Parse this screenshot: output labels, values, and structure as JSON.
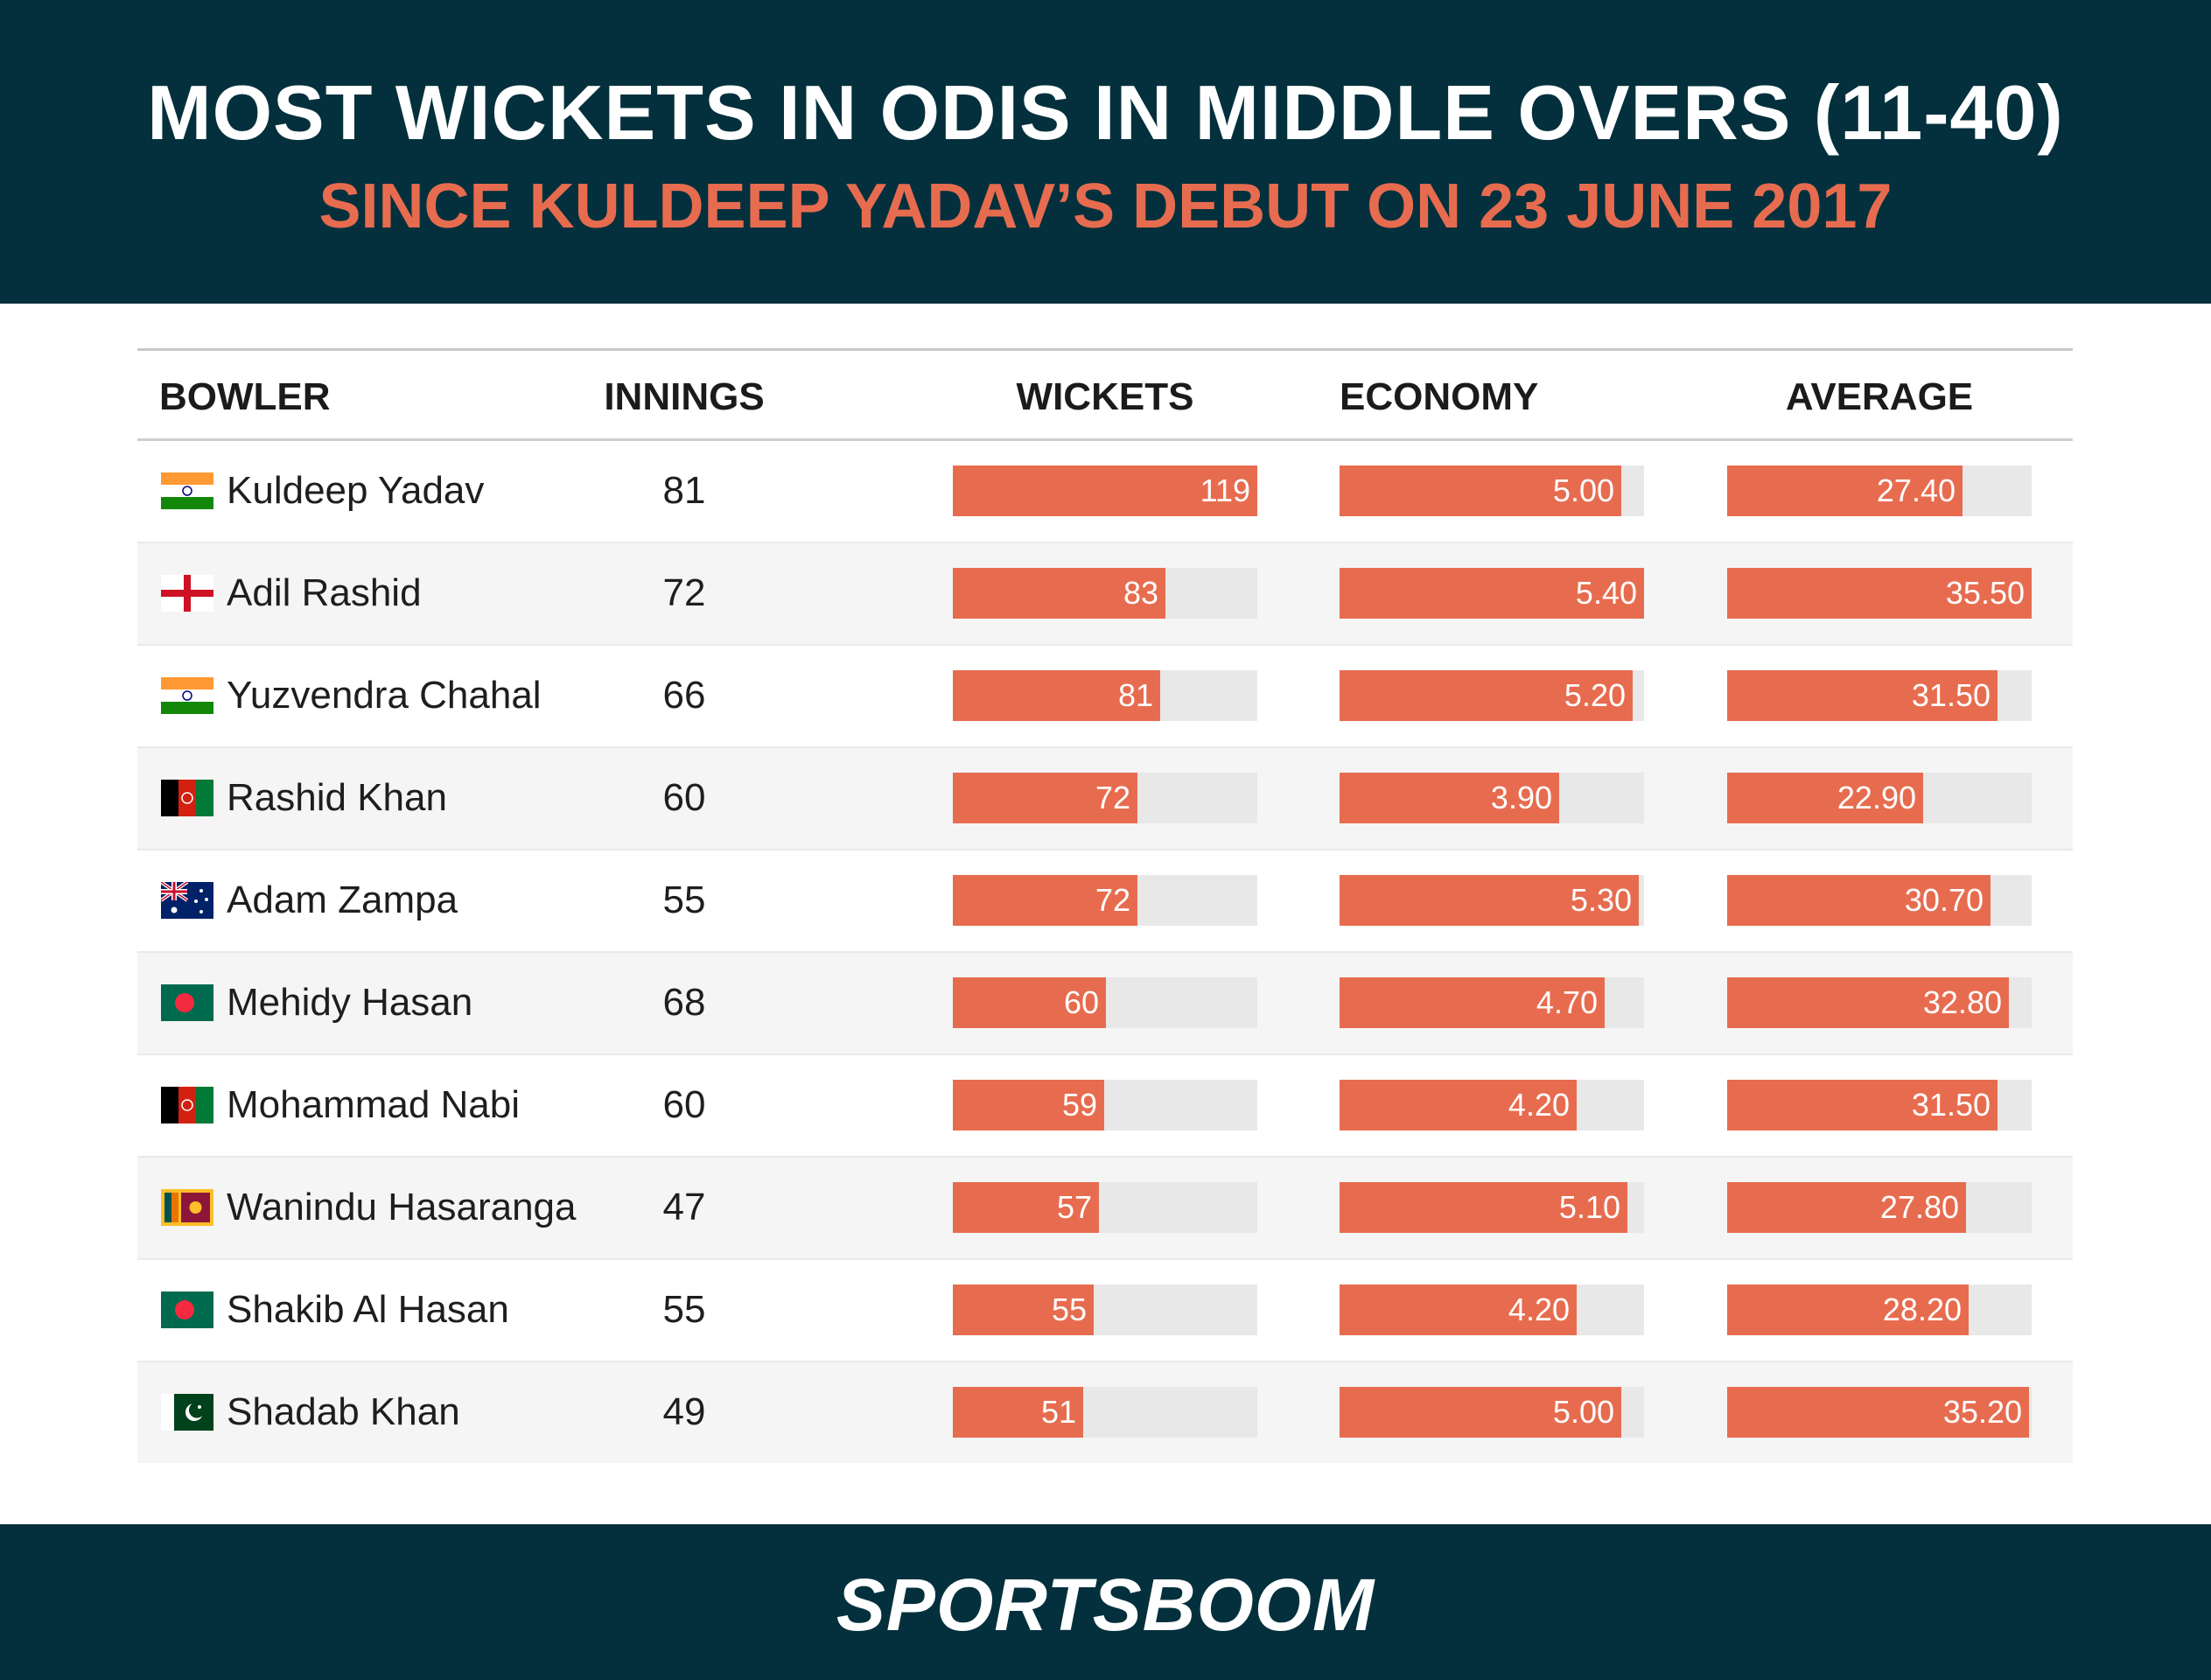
{
  "header": {
    "title": "MOST WICKETS IN ODIS IN MIDDLE OVERS (11-40)",
    "subtitle": "SINCE KULDEEP YADAV’S DEBUT ON 23 JUNE 2017"
  },
  "colors": {
    "header_bg": "#04303d",
    "accent": "#e76c4f",
    "bar_track": "#e8e8e8",
    "row_alt": "#f5f5f5"
  },
  "chart_data": {
    "type": "table",
    "columns": [
      "BOWLER",
      "INNINGS",
      "WICKETS",
      "ECONOMY",
      "AVERAGE"
    ],
    "bar_columns": {
      "wickets_max": 119,
      "economy_max": 5.4,
      "average_max": 35.5
    },
    "rows": [
      {
        "flag": "india-flag",
        "bowler": "Kuldeep Yadav",
        "innings": "81",
        "wickets": 119,
        "wickets_label": "119",
        "economy": 5.0,
        "economy_label": "5.00",
        "average": 27.4,
        "average_label": "27.40"
      },
      {
        "flag": "england-flag",
        "bowler": "Adil Rashid",
        "innings": "72",
        "wickets": 83,
        "wickets_label": "83",
        "economy": 5.4,
        "economy_label": "5.40",
        "average": 35.5,
        "average_label": "35.50"
      },
      {
        "flag": "india-flag",
        "bowler": "Yuzvendra Chahal",
        "innings": "66",
        "wickets": 81,
        "wickets_label": "81",
        "economy": 5.2,
        "economy_label": "5.20",
        "average": 31.5,
        "average_label": "31.50"
      },
      {
        "flag": "afghanistan-flag",
        "bowler": "Rashid Khan",
        "innings": "60",
        "wickets": 72,
        "wickets_label": "72",
        "economy": 3.9,
        "economy_label": "3.90",
        "average": 22.9,
        "average_label": "22.90"
      },
      {
        "flag": "australia-flag",
        "bowler": "Adam Zampa",
        "innings": "55",
        "wickets": 72,
        "wickets_label": "72",
        "economy": 5.3,
        "economy_label": "5.30",
        "average": 30.7,
        "average_label": "30.70"
      },
      {
        "flag": "bangladesh-flag",
        "bowler": "Mehidy Hasan",
        "innings": "68",
        "wickets": 60,
        "wickets_label": "60",
        "economy": 4.7,
        "economy_label": "4.70",
        "average": 32.8,
        "average_label": "32.80"
      },
      {
        "flag": "afghanistan-flag",
        "bowler": "Mohammad Nabi",
        "innings": "60",
        "wickets": 59,
        "wickets_label": "59",
        "economy": 4.2,
        "economy_label": "4.20",
        "average": 31.5,
        "average_label": "31.50"
      },
      {
        "flag": "sri-lanka-flag",
        "bowler": "Wanindu Hasaranga",
        "innings": "47",
        "wickets": 57,
        "wickets_label": "57",
        "economy": 5.1,
        "economy_label": "5.10",
        "average": 27.8,
        "average_label": "27.80"
      },
      {
        "flag": "bangladesh-flag",
        "bowler": "Shakib Al Hasan",
        "innings": "55",
        "wickets": 55,
        "wickets_label": "55",
        "economy": 4.2,
        "economy_label": "4.20",
        "average": 28.2,
        "average_label": "28.20"
      },
      {
        "flag": "pakistan-flag",
        "bowler": "Shadab Khan",
        "innings": "49",
        "wickets": 51,
        "wickets_label": "51",
        "economy": 5.0,
        "economy_label": "5.00",
        "average": 35.2,
        "average_label": "35.20"
      }
    ]
  },
  "footer": {
    "logo_text": "SPORTSBOOM"
  }
}
